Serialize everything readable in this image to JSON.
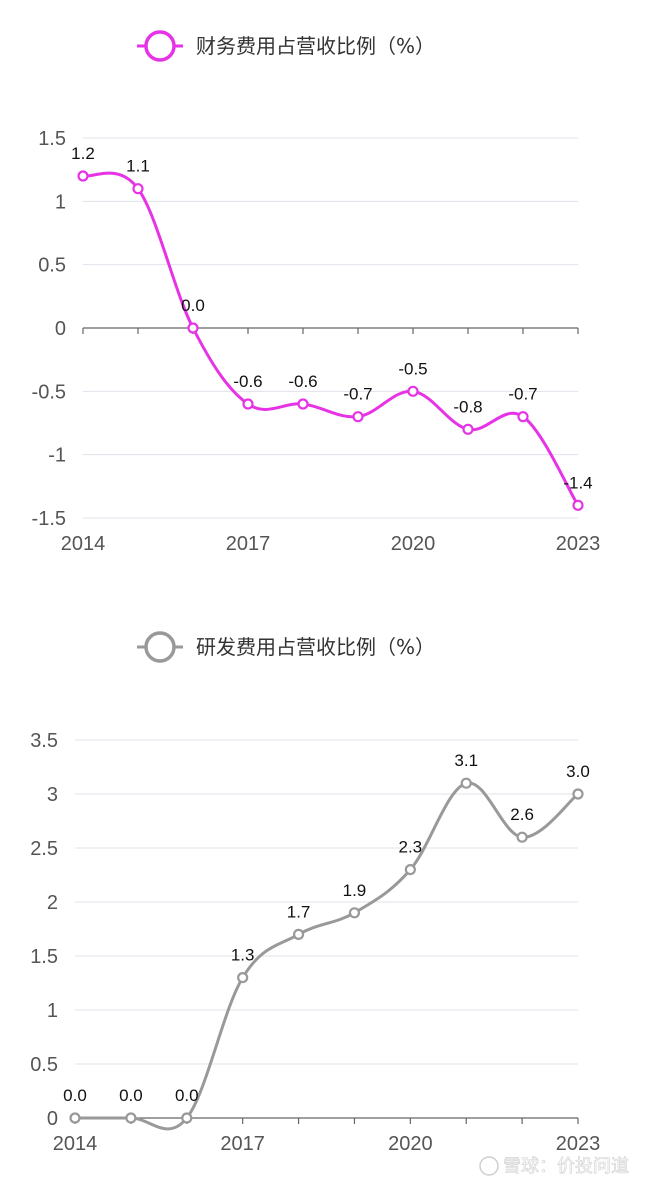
{
  "chart_data": [
    {
      "type": "line",
      "legend": "财务费用占营收比例（%）",
      "color": "#e633e6",
      "x": [
        "2014",
        "2015",
        "2016",
        "2017",
        "2018",
        "2019",
        "2020",
        "2021",
        "2022",
        "2023"
      ],
      "x_tick_labels": [
        "2014",
        "2017",
        "2020",
        "2023"
      ],
      "values": [
        1.2,
        1.1,
        0.0,
        -0.6,
        -0.6,
        -0.7,
        -0.5,
        -0.8,
        -0.7,
        -1.4
      ],
      "data_labels": [
        "1.2",
        "1.1",
        "0.0",
        "-0.6",
        "-0.6",
        "-0.7",
        "-0.5",
        "-0.8",
        "-0.7",
        "-1.4"
      ],
      "y_tick_labels": [
        "1.5",
        "1",
        "0.5",
        "0",
        "-0.5",
        "-1",
        "-1.5"
      ],
      "ylim": [
        -1.5,
        1.5
      ],
      "grid": true,
      "smooth": true,
      "legend_position": "top"
    },
    {
      "type": "line",
      "legend": "研发费用占营收比例（%）",
      "color": "#999999",
      "x": [
        "2014",
        "2015",
        "2016",
        "2017",
        "2018",
        "2019",
        "2020",
        "2021",
        "2022",
        "2023"
      ],
      "x_tick_labels": [
        "2014",
        "2017",
        "2020",
        "2023"
      ],
      "values": [
        0.0,
        0.0,
        0.0,
        1.3,
        1.7,
        1.9,
        2.3,
        3.1,
        2.6,
        3.0
      ],
      "data_labels": [
        "0.0",
        "0.0",
        "0.0",
        "1.3",
        "1.7",
        "1.9",
        "2.3",
        "3.1",
        "2.6",
        "3.0"
      ],
      "y_tick_labels": [
        "3.5",
        "3",
        "2.5",
        "2",
        "1.5",
        "1",
        "0.5",
        "0"
      ],
      "ylim": [
        0,
        3.5
      ],
      "grid": true,
      "smooth": true,
      "legend_position": "top"
    }
  ],
  "watermark": "雪球：价投问道"
}
